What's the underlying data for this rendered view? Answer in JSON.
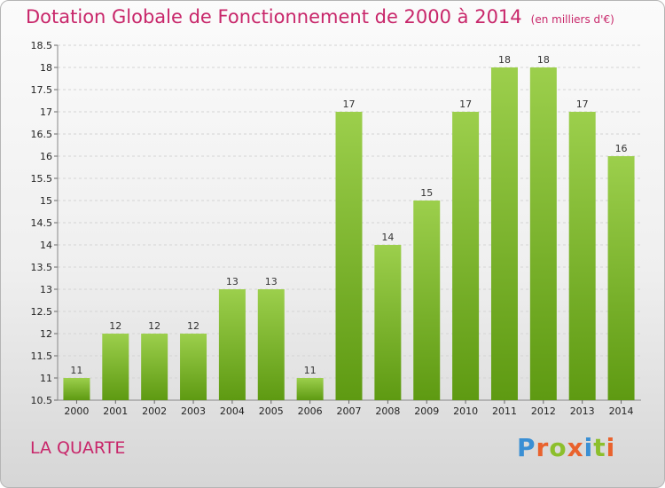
{
  "header": {
    "title": "Dotation Globale de Fonctionnement de 2000 à 2014",
    "unit": "(en milliers d'€)"
  },
  "footer": {
    "commune": "LA QUARTE",
    "logo_text": "Proxiti"
  },
  "colors": {
    "accent": "#c8266a",
    "bar_top": "#9ccf4c",
    "bar_bottom": "#5e9a12",
    "logo": [
      "#3a8fd4",
      "#e9622d",
      "#8cbf2c",
      "#e9622d",
      "#3a8fd4",
      "#8cbf2c",
      "#e9622d"
    ]
  },
  "chart_data": {
    "type": "bar",
    "categories": [
      "2000",
      "2001",
      "2002",
      "2003",
      "2004",
      "2005",
      "2006",
      "2007",
      "2008",
      "2009",
      "2010",
      "2011",
      "2012",
      "2013",
      "2014"
    ],
    "values": [
      11,
      12,
      12,
      12,
      13,
      13,
      11,
      17,
      14,
      15,
      17,
      18,
      18,
      17,
      16
    ],
    "data_labels": [
      "11",
      "12",
      "12",
      "12",
      "13",
      "13",
      "11",
      "17",
      "14",
      "15",
      "17",
      "18",
      "18",
      "17",
      "16"
    ],
    "title": "Dotation Globale de Fonctionnement de 2000 à 2014",
    "ylim": [
      10.5,
      18.5
    ],
    "yticks": [
      10.5,
      11,
      11.5,
      12,
      12.5,
      13,
      13.5,
      14,
      14.5,
      15,
      15.5,
      16,
      16.5,
      17,
      17.5,
      18,
      18.5
    ],
    "ytick_labels": [
      "10.5",
      "11",
      "11.5",
      "12",
      "12.5",
      "13",
      "13.5",
      "14",
      "14.5",
      "15",
      "15.5",
      "16",
      "16.5",
      "17",
      "17.5",
      "18",
      "18.5"
    ],
    "grid": true,
    "legend": "none"
  }
}
